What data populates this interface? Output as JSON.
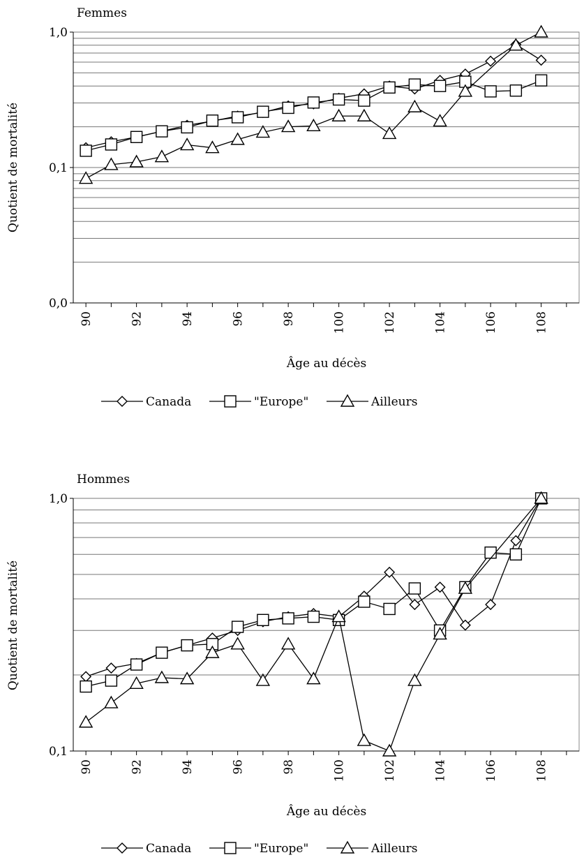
{
  "chart_data": [
    {
      "type": "line",
      "title": "Femmes",
      "xlabel": "Âge au décès",
      "ylabel": "Quotient de mortalité",
      "yscale": "log",
      "ylim": [
        0.01,
        1.0
      ],
      "xlim": [
        89.5,
        109.5
      ],
      "yticks": [
        {
          "value": 0.01,
          "label": "0,0"
        },
        {
          "value": 0.1,
          "label": "0,1"
        },
        {
          "value": 1.0,
          "label": "1,0"
        }
      ],
      "xticks": [
        90,
        92,
        94,
        96,
        98,
        100,
        102,
        104,
        106,
        108
      ],
      "grid": "horizontal",
      "legend": "bottom",
      "x": [
        90,
        91,
        92,
        93,
        94,
        95,
        96,
        97,
        98,
        99,
        100,
        101,
        102,
        103,
        104,
        105,
        106,
        107,
        108
      ],
      "series": [
        {
          "name": "Canada",
          "marker": "diamond",
          "values": [
            0.14,
            0.155,
            0.168,
            0.185,
            0.205,
            0.22,
            0.24,
            0.255,
            0.285,
            0.295,
            0.325,
            0.35,
            0.4,
            0.38,
            0.44,
            0.49,
            0.61,
            0.81,
            0.62
          ]
        },
        {
          "name": "\"Europe\"",
          "marker": "square",
          "values": [
            0.133,
            0.148,
            0.168,
            0.185,
            0.198,
            0.222,
            0.235,
            0.258,
            0.276,
            0.302,
            0.318,
            0.312,
            0.39,
            0.41,
            0.4,
            0.43,
            0.365,
            0.37,
            0.44
          ]
        },
        {
          "name": "Ailleurs",
          "marker": "triangle",
          "values": [
            0.083,
            0.105,
            0.11,
            0.12,
            0.147,
            0.14,
            0.161,
            0.182,
            0.2,
            0.203,
            0.24,
            0.24,
            0.178,
            0.28,
            0.22,
            0.365,
            null,
            0.8,
            1.0
          ]
        }
      ]
    },
    {
      "type": "line",
      "title": "Hommes",
      "xlabel": "Âge au décès",
      "ylabel": "Quotient de mortalité",
      "yscale": "log",
      "ylim": [
        0.1,
        1.0
      ],
      "xlim": [
        89.5,
        109.5
      ],
      "yticks": [
        {
          "value": 0.1,
          "label": "0,1"
        },
        {
          "value": 1.0,
          "label": "1,0"
        }
      ],
      "xticks": [
        90,
        92,
        94,
        96,
        98,
        100,
        102,
        104,
        106,
        108
      ],
      "grid": "horizontal",
      "legend": "bottom",
      "x": [
        90,
        91,
        92,
        93,
        94,
        95,
        96,
        97,
        98,
        99,
        100,
        101,
        102,
        103,
        104,
        105,
        106,
        107,
        108
      ],
      "series": [
        {
          "name": "Canada",
          "marker": "diamond",
          "values": [
            0.197,
            0.213,
            0.222,
            0.245,
            0.262,
            0.28,
            0.3,
            0.325,
            0.34,
            0.35,
            0.34,
            0.41,
            0.51,
            0.38,
            0.445,
            0.315,
            0.38,
            0.68,
            1.0
          ]
        },
        {
          "name": "\"Europe\"",
          "marker": "square",
          "values": [
            0.18,
            0.19,
            0.22,
            0.245,
            0.262,
            0.265,
            0.31,
            0.33,
            0.335,
            0.34,
            0.33,
            0.39,
            0.365,
            0.44,
            0.3,
            0.445,
            0.61,
            0.6,
            1.0
          ]
        },
        {
          "name": "Ailleurs",
          "marker": "triangle",
          "values": [
            0.13,
            0.155,
            0.185,
            0.195,
            0.193,
            0.245,
            0.265,
            0.19,
            0.265,
            0.193,
            0.34,
            0.11,
            0.1,
            0.19,
            0.29,
            0.44,
            null,
            null,
            1.0
          ]
        }
      ]
    }
  ]
}
